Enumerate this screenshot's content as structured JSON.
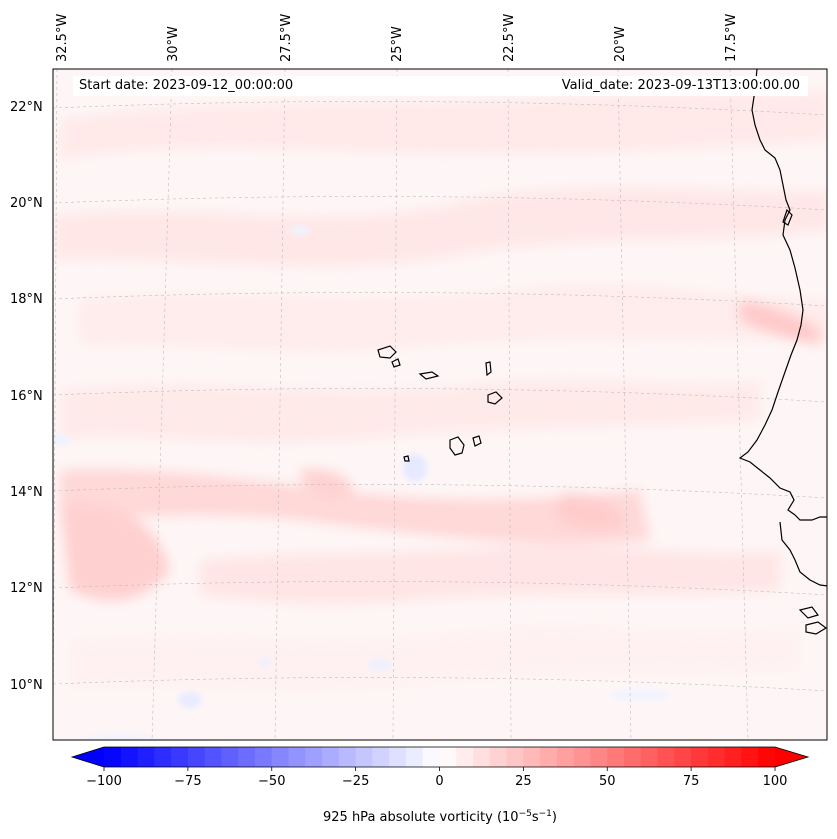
{
  "header": {
    "start_date": "Start date: 2023-09-12_00:00:00",
    "valid_date": "Valid_date: 2023-09-13T13:00:00.00"
  },
  "map": {
    "longitude_labels": [
      "32.5°W",
      "30°W",
      "27.5°W",
      "25°W",
      "22.5°W",
      "20°W",
      "17.5°W"
    ],
    "latitude_labels": [
      "22°N",
      "20°N",
      "18°N",
      "16°N",
      "14°N",
      "12°N",
      "10°N"
    ],
    "field": "925 hPa absolute vorticity",
    "extent": {
      "lon_min": -32.8,
      "lon_max": -15.5,
      "lat_min": 8.9,
      "lat_max": 22.8
    }
  },
  "colorbar": {
    "label_text": "925 hPa absolute vorticity (10",
    "label_exp1": "−5",
    "label_mid": "s",
    "label_exp2": "−1",
    "label_close": ")",
    "tick_labels": [
      "−100",
      "−75",
      "−50",
      "−25",
      "0",
      "25",
      "50",
      "75",
      "100"
    ],
    "min": -100,
    "max": 100,
    "step": 5,
    "extend": "both",
    "colormap": "bwr",
    "colors": {
      "negative": "#0000ff",
      "zero": "#ffffff",
      "positive": "#ff0000"
    }
  }
}
